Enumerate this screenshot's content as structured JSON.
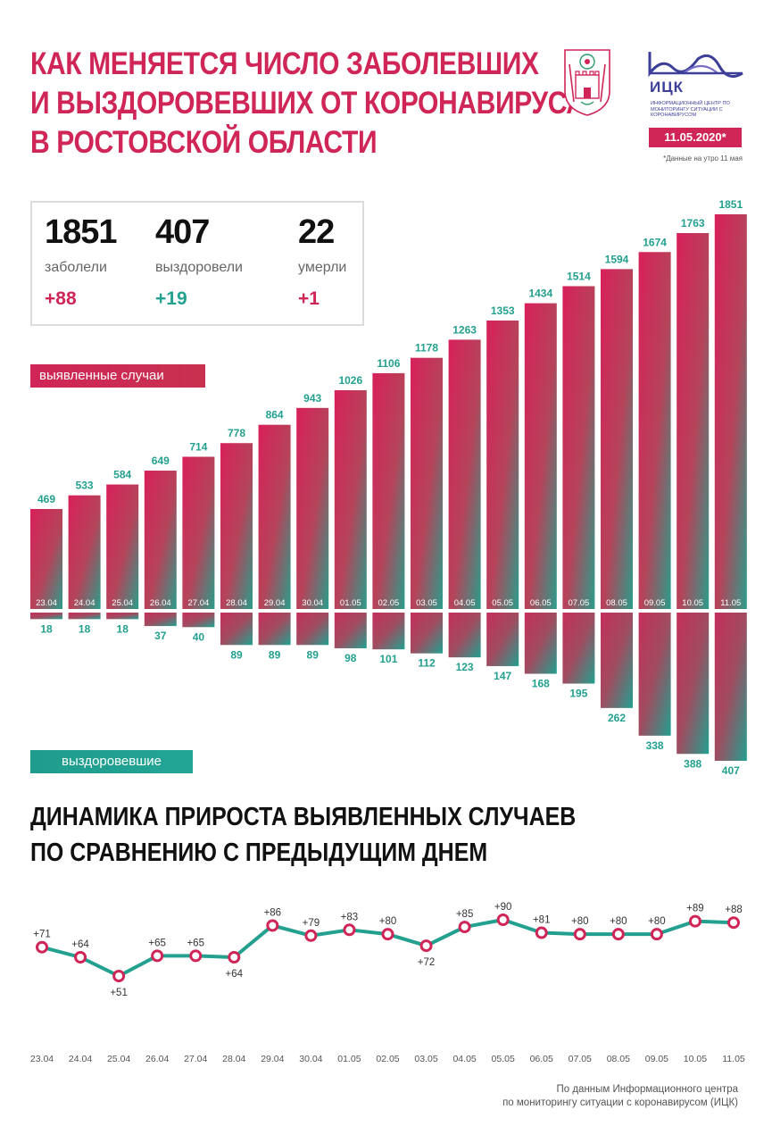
{
  "header": {
    "title_lines": [
      "КАК МЕНЯЕТСЯ ЧИСЛО ЗАБОЛЕВШИХ",
      "И ВЫЗДОРОВЕВШИХ ОТ КОРОНАВИРУСА",
      "В РОСТОВСКОЙ ОБЛАСТИ"
    ],
    "logo_abbr": "ИЦК",
    "logo_subtitle": "ИНФОРМАЦИОННЫЙ ЦЕНТР ПО МОНИТОРИНГУ СИТУАЦИИ С КОРОНАВИРУСОМ",
    "date_badge": "11.05.2020*",
    "date_note": "*Данные на утро 11 мая"
  },
  "stats": [
    {
      "value": "1851",
      "label": "заболели",
      "delta": "+88"
    },
    {
      "value": "407",
      "label": "выздоровели",
      "delta": "+19"
    },
    {
      "value": "22",
      "label": "умерли",
      "delta": "+1"
    }
  ],
  "labels": {
    "cases": "выявленные случаи",
    "recovered": "выздоровевшие"
  },
  "subtitle_lines": [
    "ДИНАМИКА ПРИРОСТА ВЫЯВЛЕННЫХ СЛУЧАЕВ",
    "ПО СРАВНЕНИЮ С ПРЕДЫДУЩИМ ДНЕМ"
  ],
  "footer_lines": [
    "По данным Информационного центра",
    "по мониторингу ситуации с коронавирусом (ИЦК)"
  ],
  "colors": {
    "cases_top": "#d6215a",
    "cases_bottom": "#2a9d8b",
    "recovered_label": "#22a090",
    "accent": "#cf2657",
    "line": "#23a08f",
    "marker": "#cf2657"
  },
  "chart_data": [
    {
      "type": "bar",
      "categories": [
        "23.04",
        "24.04",
        "25.04",
        "26.04",
        "27.04",
        "28.04",
        "29.04",
        "30.04",
        "01.05",
        "02.05",
        "03.05",
        "04.05",
        "05.05",
        "06.05",
        "07.05",
        "08.05",
        "09.05",
        "10.05",
        "11.05"
      ],
      "series": [
        {
          "name": "выявленные случаи",
          "values": [
            469,
            533,
            584,
            649,
            714,
            778,
            864,
            943,
            1026,
            1106,
            1178,
            1263,
            1353,
            1434,
            1514,
            1594,
            1674,
            1763,
            1851
          ]
        },
        {
          "name": "выздоровевшие",
          "values": [
            18,
            18,
            18,
            37,
            40,
            89,
            89,
            89,
            98,
            101,
            112,
            123,
            147,
            168,
            195,
            262,
            338,
            388,
            407
          ]
        }
      ]
    },
    {
      "type": "line",
      "categories": [
        "23.04",
        "24.04",
        "25.04",
        "26.04",
        "27.04",
        "28.04",
        "29.04",
        "30.04",
        "01.05",
        "02.05",
        "03.05",
        "04.05",
        "05.05",
        "06.05",
        "07.05",
        "08.05",
        "09.05",
        "10.05",
        "11.05"
      ],
      "values": [
        71,
        64,
        51,
        65,
        65,
        64,
        86,
        79,
        83,
        80,
        72,
        85,
        90,
        81,
        80,
        80,
        80,
        89,
        88
      ],
      "value_labels": [
        "+71",
        "+64",
        "+51",
        "+65",
        "+65",
        "+64",
        "+86",
        "+79",
        "+83",
        "+80",
        "+72",
        "+85",
        "+90",
        "+81",
        "+80",
        "+80",
        "+80",
        "+89",
        "+88"
      ]
    }
  ]
}
